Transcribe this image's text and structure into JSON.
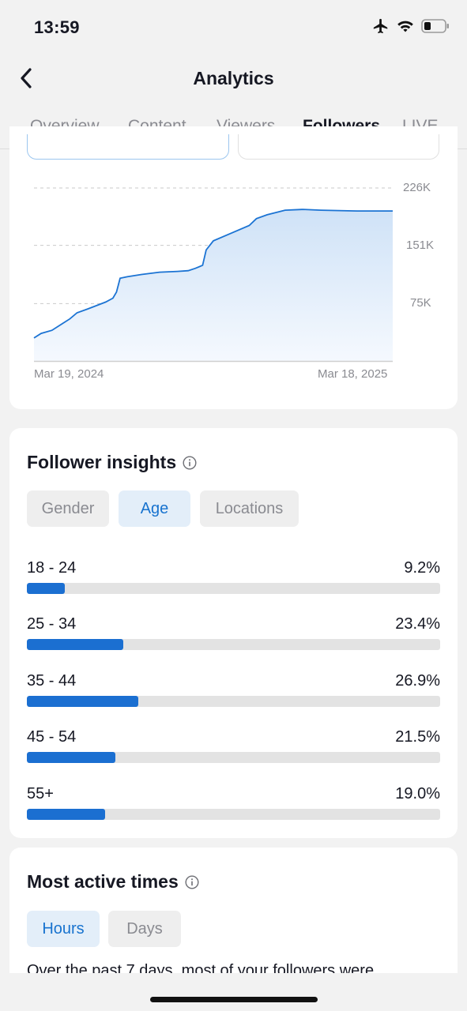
{
  "status_bar": {
    "time": "13:59",
    "icons": [
      "airplane-icon",
      "wifi-icon",
      "battery-icon"
    ]
  },
  "header": {
    "title": "Analytics",
    "back_icon": "chevron-left-icon"
  },
  "tabs": [
    {
      "label": "Overview",
      "active": false
    },
    {
      "label": "Content",
      "active": false
    },
    {
      "label": "Viewers",
      "active": false
    },
    {
      "label": "Followers",
      "active": true
    },
    {
      "label": "LIVE",
      "active": false
    }
  ],
  "chart_data": {
    "type": "area",
    "x_start": "Mar 19, 2024",
    "x_end": "Mar 18, 2025",
    "ytick_labels": [
      "226K",
      "151K",
      "75K"
    ],
    "yticks": [
      226000,
      151000,
      75000
    ],
    "ylim": [
      0,
      226000
    ],
    "grid": true,
    "x": [
      0,
      0.02,
      0.05,
      0.08,
      0.1,
      0.12,
      0.15,
      0.2,
      0.22,
      0.23,
      0.24,
      0.26,
      0.3,
      0.35,
      0.4,
      0.43,
      0.45,
      0.47,
      0.48,
      0.5,
      0.55,
      0.6,
      0.62,
      0.65,
      0.7,
      0.75,
      0.8,
      0.9,
      1.0
    ],
    "y": [
      30000,
      36000,
      40000,
      49000,
      55000,
      63000,
      68000,
      77000,
      82000,
      90000,
      108000,
      110000,
      113000,
      116000,
      117000,
      118000,
      121000,
      125000,
      145000,
      157000,
      167000,
      177000,
      186000,
      191000,
      197000,
      198000,
      197000,
      196000,
      196000
    ],
    "colors": {
      "line": "#1b73d3",
      "fill_top": "#cfe2f7",
      "fill_bottom": "#f5f9fe",
      "grid": "#c9c9c9"
    }
  },
  "insights": {
    "title": "Follower insights",
    "filters": [
      {
        "label": "Gender",
        "active": false
      },
      {
        "label": "Age",
        "active": true
      },
      {
        "label": "Locations",
        "active": false
      }
    ],
    "ages": [
      {
        "label": "18 - 24",
        "value": "9.2%",
        "pct": 9.2
      },
      {
        "label": "25 - 34",
        "value": "23.4%",
        "pct": 23.4
      },
      {
        "label": "35 - 44",
        "value": "26.9%",
        "pct": 26.9
      },
      {
        "label": "45 - 54",
        "value": "21.5%",
        "pct": 21.5
      },
      {
        "label": "55+",
        "value": "19.0%",
        "pct": 19.0
      }
    ]
  },
  "active_times": {
    "title": "Most active times",
    "filters": [
      {
        "label": "Hours",
        "active": true
      },
      {
        "label": "Days",
        "active": false
      }
    ],
    "summary": "Over the past 7 days, most of your followers were"
  },
  "colors": {
    "accent": "#1b6fd1",
    "accent_bg": "#e3eef9",
    "text": "#161823",
    "muted": "#8a8b91"
  }
}
